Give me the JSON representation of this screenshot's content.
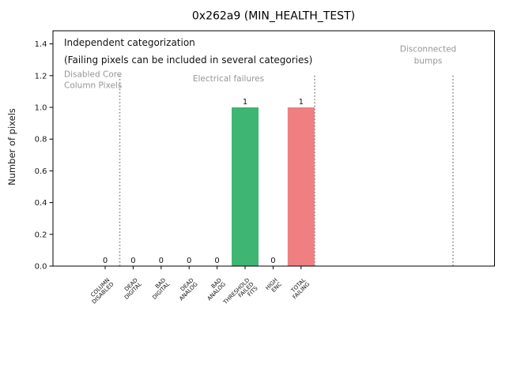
{
  "title": "0x262a9 (MIN_HEALTH_TEST)",
  "ylabel": "Number of pixels",
  "annotations": {
    "independent": "Independent categorization",
    "failing_note": "(Failing pixels can be included in several categories)"
  },
  "sections": [
    {
      "id": "disabled-core-column-pixels",
      "lines": [
        "Disabled Core",
        "Column Pixels"
      ]
    },
    {
      "id": "electrical-failures",
      "lines": [
        "Electrical failures"
      ]
    },
    {
      "id": "disconnected-bumps",
      "lines": [
        "Disconnected",
        "bumps"
      ]
    }
  ],
  "chart_data": {
    "type": "bar",
    "title": "0x262a9 (MIN_HEALTH_TEST)",
    "xlabel": "",
    "ylabel": "Number of pixels",
    "categories": [
      "COLUMN DISABLED",
      "DEAD DIGITAL",
      "BAD DIGITAL",
      "DEAD ANALOG",
      "BAD ANALOG",
      "THRESHOLD FAILED FITS",
      "HIGH ENC",
      "TOTAL FAILING"
    ],
    "category_label_lines": [
      [
        "COLUMN",
        "DISABLED"
      ],
      [
        "DEAD",
        "DIGITAL"
      ],
      [
        "BAD",
        "DIGITAL"
      ],
      [
        "DEAD",
        "ANALOG"
      ],
      [
        "BAD",
        "ANALOG"
      ],
      [
        "THRESHOLD",
        "FAILED",
        "FITS"
      ],
      [
        "HIGH",
        "ENC"
      ],
      [
        "TOTAL",
        "FAILING"
      ]
    ],
    "values": [
      0,
      0,
      0,
      0,
      0,
      1,
      0,
      1
    ],
    "bar_value_labels": [
      "0",
      "0",
      "0",
      "0",
      "0",
      "1",
      "0",
      "1"
    ],
    "bar_colors": [
      null,
      null,
      null,
      null,
      null,
      "#3eb573",
      null,
      "#ef7f80"
    ],
    "yticks": [
      "0.0",
      "0.2",
      "0.4",
      "0.6",
      "0.8",
      "1.0",
      "1.2",
      "1.4"
    ],
    "ytick_values": [
      0.0,
      0.2,
      0.4,
      0.6,
      0.8,
      1.0,
      1.2,
      1.4
    ],
    "ylim": [
      0.0,
      1.48
    ],
    "grid": false,
    "legend": null,
    "separators": {
      "style": "dotted",
      "top_value": 1.2,
      "color": "#8c8c8c"
    }
  },
  "colors": {
    "bar_green": "#3eb573",
    "bar_red": "#ef7f80",
    "section_text": "#969696",
    "separator": "#8c8c8c",
    "axis": "#000000",
    "background": "#ffffff"
  }
}
